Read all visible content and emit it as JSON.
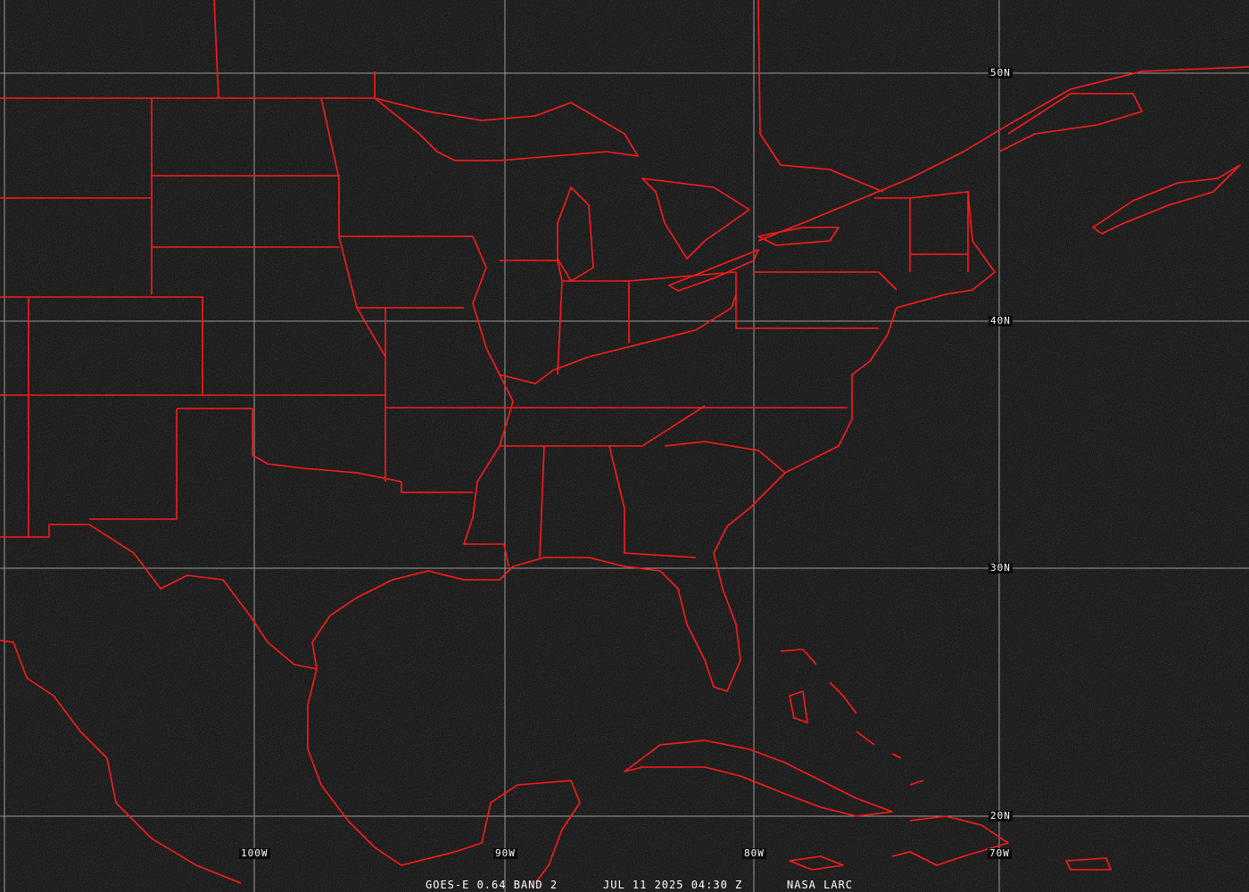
{
  "image": {
    "satellite": "GOES-E 0.64 BAND 2",
    "datetime": "JUL 11 2025 04:30 Z",
    "credit": "NASA LARC",
    "outline_color": "#ff1a1a",
    "grid_color": "#9a9a9a",
    "background_color": "#0b0b0b"
  },
  "grid": {
    "latitudes": [
      "50N",
      "40N",
      "30N",
      "20N"
    ],
    "longitudes": [
      "100W",
      "90W",
      "80W",
      "70W"
    ]
  }
}
